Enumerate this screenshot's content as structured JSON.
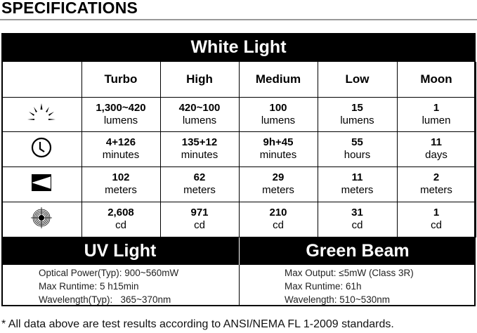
{
  "title": "SPECIFICATIONS",
  "white_light": {
    "heading": "White Light",
    "modes": [
      "Turbo",
      "High",
      "Medium",
      "Low",
      "Moon"
    ],
    "rows": [
      {
        "icon": "brightness-icon",
        "cells": [
          {
            "value": "1,300~420",
            "unit": "lumens"
          },
          {
            "value": "420~100",
            "unit": "lumens"
          },
          {
            "value": "100",
            "unit": "lumens"
          },
          {
            "value": "15",
            "unit": "lumens"
          },
          {
            "value": "1",
            "unit": "lumen"
          }
        ]
      },
      {
        "icon": "clock-icon",
        "cells": [
          {
            "value": "4+126",
            "unit": "minutes"
          },
          {
            "value": "135+12",
            "unit": "minutes"
          },
          {
            "value": "9h+45",
            "unit": "minutes"
          },
          {
            "value": "55",
            "unit": "hours"
          },
          {
            "value": "11",
            "unit": "days"
          }
        ]
      },
      {
        "icon": "beam-distance-icon",
        "cells": [
          {
            "value": "102",
            "unit": "meters"
          },
          {
            "value": "62",
            "unit": "meters"
          },
          {
            "value": "29",
            "unit": "meters"
          },
          {
            "value": "11",
            "unit": "meters"
          },
          {
            "value": "2",
            "unit": "meters"
          }
        ]
      },
      {
        "icon": "target-intensity-icon",
        "cells": [
          {
            "value": "2,608",
            "unit": "cd"
          },
          {
            "value": "971",
            "unit": "cd"
          },
          {
            "value": "210",
            "unit": "cd"
          },
          {
            "value": "31",
            "unit": "cd"
          },
          {
            "value": "1",
            "unit": "cd"
          }
        ]
      }
    ]
  },
  "uv": {
    "heading": "UV Light",
    "lines": [
      "Optical Power(Typ): 900~560mW",
      "Max Runtime: 5 h15min",
      "Wavelength(Typ):   365~370nm"
    ]
  },
  "green": {
    "heading": "Green Beam",
    "lines": [
      "Max Output: ≤5mW (Class 3R)",
      "Max Runtime: 61h",
      "Wavelength: 510~530nm"
    ]
  },
  "footnote": "* All data above are test results according to ANSI/NEMA FL 1-2009 standards."
}
